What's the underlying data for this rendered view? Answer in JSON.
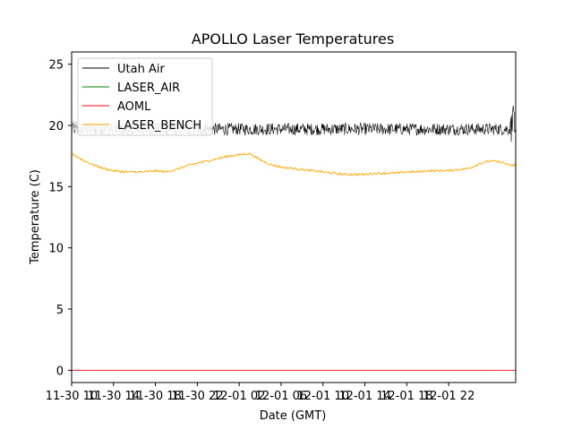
{
  "chart_data": {
    "type": "line",
    "title": "APOLLO Laser Temperatures",
    "xlabel": "Date (GMT)",
    "ylabel": "Temperature (C)",
    "xlim": [
      0,
      42.4
    ],
    "ylim": [
      -1,
      26
    ],
    "xticks": [
      {
        "value": 0,
        "label": "11-30 10"
      },
      {
        "value": 4,
        "label": "11-30 14"
      },
      {
        "value": 8,
        "label": "11-30 18"
      },
      {
        "value": 12,
        "label": "11-30 22"
      },
      {
        "value": 16,
        "label": "12-01 02"
      },
      {
        "value": 20,
        "label": "12-01 06"
      },
      {
        "value": 24,
        "label": "12-01 10"
      },
      {
        "value": 28,
        "label": "12-01 14"
      },
      {
        "value": 32,
        "label": "12-01 18"
      },
      {
        "value": 36,
        "label": "12-01 22"
      }
    ],
    "yticks": [
      0,
      5,
      10,
      15,
      20,
      25
    ],
    "legend_position": "upper-left",
    "series": [
      {
        "name": "Utah Air",
        "color": "#000000",
        "x": [
          0,
          42.4
        ],
        "y": [
          19.7,
          19.7
        ]
      },
      {
        "name": "LASER_AIR",
        "color": "#008000",
        "x": [],
        "y": []
      },
      {
        "name": "AOML",
        "color": "#ff0000",
        "x": [
          0,
          42.4
        ],
        "y": [
          0,
          0
        ]
      },
      {
        "name": "LASER_BENCH",
        "color": "#ffa500",
        "x": [
          0,
          1,
          2,
          3,
          4,
          5,
          6,
          7,
          8,
          9,
          10,
          11,
          12,
          13,
          14,
          15,
          16,
          17,
          18,
          19,
          20,
          21,
          22,
          23,
          24,
          25,
          26,
          27,
          28,
          29,
          30,
          31,
          32,
          33,
          34,
          35,
          36,
          37,
          38,
          39,
          40,
          41,
          42,
          42.4
        ],
        "y": [
          17.7,
          17.2,
          16.8,
          16.5,
          16.3,
          16.2,
          16.2,
          16.2,
          16.3,
          16.2,
          16.4,
          16.7,
          16.9,
          17.1,
          17.3,
          17.5,
          17.6,
          17.7,
          17.2,
          16.8,
          16.6,
          16.5,
          16.4,
          16.3,
          16.2,
          16.1,
          16.0,
          16.0,
          16.0,
          16.1,
          16.1,
          16.1,
          16.2,
          16.2,
          16.3,
          16.3,
          16.3,
          16.4,
          16.5,
          16.9,
          17.1,
          17.0,
          16.7,
          16.8
        ]
      }
    ],
    "overlay_series": {
      "name": "gray",
      "color": "#cccccc",
      "x_range": [
        0,
        12
      ],
      "y_center": 19.8
    }
  }
}
